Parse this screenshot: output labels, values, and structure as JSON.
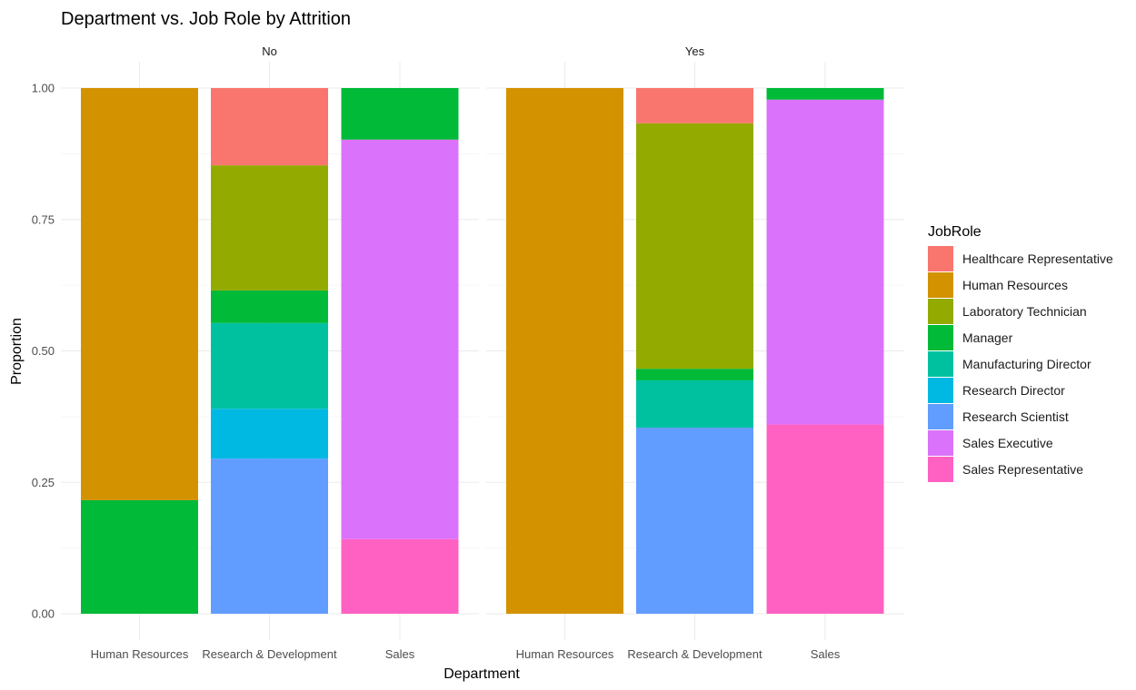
{
  "chart_data": {
    "type": "bar",
    "stacked": true,
    "title": "Department vs. Job Role by Attrition",
    "xlabel": "Department",
    "ylabel": "Proportion",
    "ylim": [
      0,
      1
    ],
    "y_ticks": [
      "0.00",
      "0.25",
      "0.50",
      "0.75",
      "1.00"
    ],
    "grid": true,
    "legend": {
      "title": "JobRole",
      "position": "right",
      "items": [
        {
          "name": "Healthcare Representative",
          "color": "#F8766D"
        },
        {
          "name": "Human Resources",
          "color": "#D39200"
        },
        {
          "name": "Laboratory Technician",
          "color": "#93AA00"
        },
        {
          "name": "Manager",
          "color": "#00BA38"
        },
        {
          "name": "Manufacturing Director",
          "color": "#00C19F"
        },
        {
          "name": "Research Director",
          "color": "#00B9E3"
        },
        {
          "name": "Research Scientist",
          "color": "#619CFF"
        },
        {
          "name": "Sales Executive",
          "color": "#DB72FB"
        },
        {
          "name": "Sales Representative",
          "color": "#FF61C3"
        }
      ]
    },
    "categories": [
      "Human Resources",
      "Research & Development",
      "Sales"
    ],
    "facets": [
      {
        "label": "No",
        "bars": [
          {
            "category": "Human Resources",
            "segments": [
              {
                "role": "Manager",
                "value": 0.216
              },
              {
                "role": "Human Resources",
                "value": 0.784
              }
            ]
          },
          {
            "category": "Research & Development",
            "segments": [
              {
                "role": "Research Scientist",
                "value": 0.295
              },
              {
                "role": "Research Director",
                "value": 0.095
              },
              {
                "role": "Manufacturing Director",
                "value": 0.163
              },
              {
                "role": "Manager",
                "value": 0.062
              },
              {
                "role": "Laboratory Technician",
                "value": 0.238
              },
              {
                "role": "Healthcare Representative",
                "value": 0.147
              }
            ]
          },
          {
            "category": "Sales",
            "segments": [
              {
                "role": "Sales Representative",
                "value": 0.142
              },
              {
                "role": "Sales Executive",
                "value": 0.76
              },
              {
                "role": "Manager",
                "value": 0.098
              }
            ]
          }
        ]
      },
      {
        "label": "Yes",
        "bars": [
          {
            "category": "Human Resources",
            "segments": [
              {
                "role": "Human Resources",
                "value": 1.0
              }
            ]
          },
          {
            "category": "Research & Development",
            "segments": [
              {
                "role": "Research Scientist",
                "value": 0.354
              },
              {
                "role": "Manufacturing Director",
                "value": 0.09
              },
              {
                "role": "Manager",
                "value": 0.022
              },
              {
                "role": "Laboratory Technician",
                "value": 0.467
              },
              {
                "role": "Healthcare Representative",
                "value": 0.067
              }
            ]
          },
          {
            "category": "Sales",
            "segments": [
              {
                "role": "Sales Representative",
                "value": 0.36
              },
              {
                "role": "Sales Executive",
                "value": 0.618
              },
              {
                "role": "Manager",
                "value": 0.022
              }
            ]
          }
        ]
      }
    ]
  }
}
